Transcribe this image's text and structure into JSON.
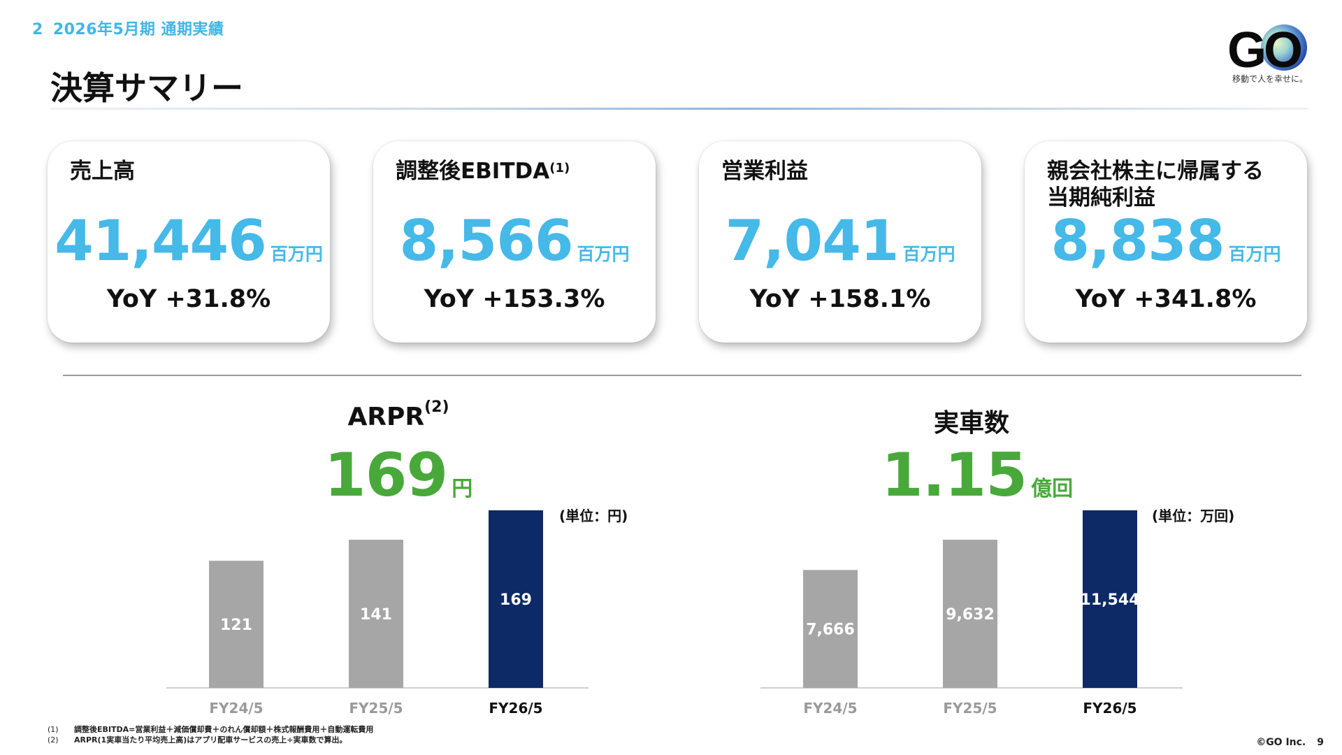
{
  "header": {
    "section_number": "2",
    "section_title": "2026年5月期 通期実績",
    "page_title": "決算サマリー",
    "logo_text": "GO",
    "logo_tagline": "移動で人を幸せに。"
  },
  "kpis": [
    {
      "title": "売上高",
      "sup": "",
      "value": "41,446",
      "unit": "百万円",
      "yoy": "YoY +31.8%"
    },
    {
      "title": "調整後EBITDA",
      "sup": "(1)",
      "value": "8,566",
      "unit": "百万円",
      "yoy": "YoY +153.3%"
    },
    {
      "title": "営業利益",
      "sup": "",
      "value": "7,041",
      "unit": "百万円",
      "yoy": "YoY +158.1%"
    },
    {
      "title": "親会社株主に帰属する当期純利益",
      "title_line1": "親会社株主に帰属する",
      "title_line2": "当期純利益",
      "sup": "",
      "value": "8,838",
      "unit": "百万円",
      "yoy": "YoY +341.8%"
    }
  ],
  "colors": {
    "accent": "#45b9e8",
    "highlight_green": "#48a93a",
    "bar_gray": "#a6a6a6",
    "bar_navy": "#0d2a66"
  },
  "chart_data": [
    {
      "type": "bar",
      "title": "ARPR",
      "title_sup": "(2)",
      "headline_value": "169",
      "headline_unit": "円",
      "unit_note": "(単位：円)",
      "categories": [
        "FY24/5",
        "FY25/5",
        "FY26/5"
      ],
      "values": [
        121,
        141,
        169
      ],
      "value_labels": [
        "121",
        "141",
        "169"
      ],
      "highlight_index": 2
    },
    {
      "type": "bar",
      "title": "実車数",
      "title_sup": "",
      "headline_value": "1.15",
      "headline_unit": "億回",
      "unit_note": "(単位：万回)",
      "categories": [
        "FY24/5",
        "FY25/5",
        "FY26/5"
      ],
      "values": [
        7666,
        9632,
        11544
      ],
      "value_labels": [
        "7,666",
        "9,632",
        "11,544"
      ],
      "highlight_index": 2
    }
  ],
  "footnotes": [
    {
      "mark": "(1)",
      "text": "調整後EBITDA=営業利益＋減価償却費＋のれん償却額＋株式報酬費用＋自動運転費用"
    },
    {
      "mark": "(2)",
      "text": "ARPR(1実車当たり平均売上高)はアプリ配車サービスの売上÷実車数で算出。"
    }
  ],
  "footer": {
    "copyright": "©GO Inc.",
    "page_number": "9"
  }
}
